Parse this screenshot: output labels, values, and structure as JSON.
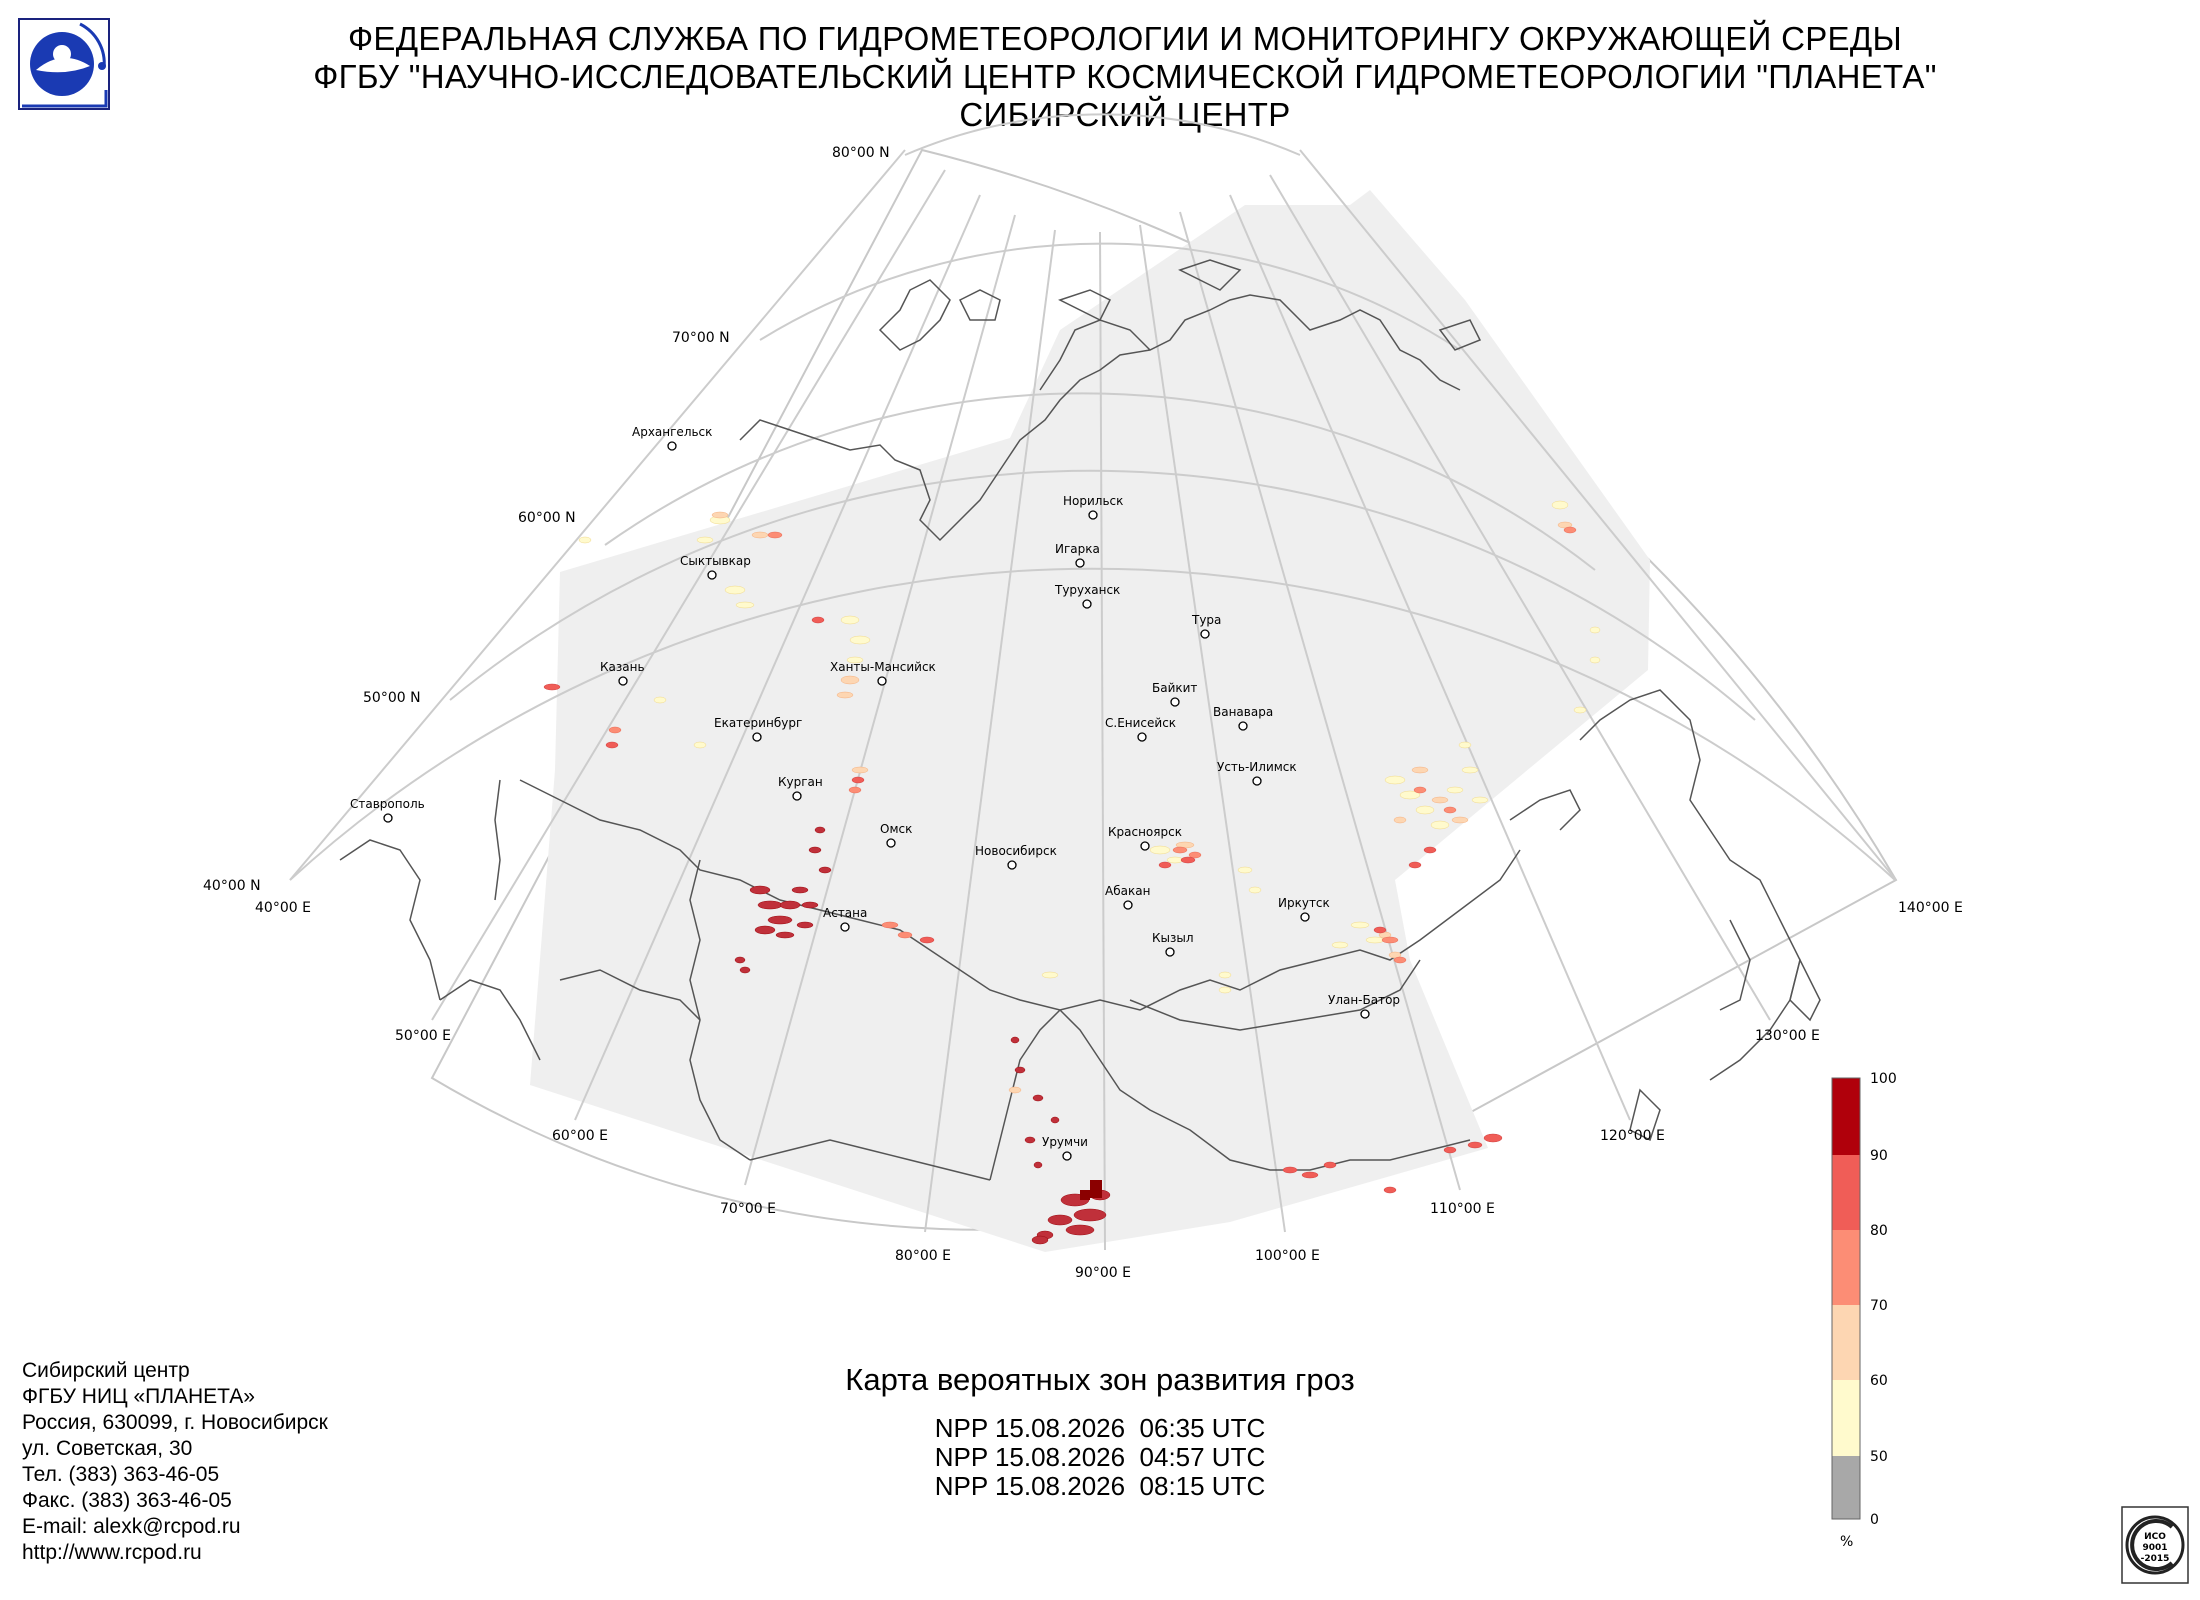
{
  "header": {
    "line1": "ФЕДЕРАЛЬНАЯ СЛУЖБА ПО ГИДРОМЕТЕОРОЛОГИИ И МОНИТОРИНГУ ОКРУЖАЮЩЕЙ СРЕДЫ",
    "line2": "ФГБУ \"НАУЧНО-ИССЛЕДОВАТЕЛЬСКИЙ ЦЕНТР КОСМИЧЕСКОЙ ГИДРОМЕТЕОРОЛОГИИ \"ПЛАНЕТА\"",
    "line3": "СИБИРСКИЙ ЦЕНТР"
  },
  "map": {
    "latitude_labels": [
      "80°00 N",
      "70°00 N",
      "60°00 N",
      "50°00 N",
      "40°00 N"
    ],
    "longitude_labels": [
      "40°00 E",
      "50°00 E",
      "60°00 E",
      "70°00 E",
      "80°00 E",
      "90°00 E",
      "100°00 E",
      "110°00 E",
      "120°00 E",
      "130°00 E",
      "140°00 E"
    ],
    "cities": [
      {
        "name": "Архангельск"
      },
      {
        "name": "Сыктывкар"
      },
      {
        "name": "Казань"
      },
      {
        "name": "Екатеринбург"
      },
      {
        "name": "Ханты-Мансийск"
      },
      {
        "name": "Ставрополь"
      },
      {
        "name": "Курган"
      },
      {
        "name": "Омск"
      },
      {
        "name": "Астана"
      },
      {
        "name": "Новосибирск"
      },
      {
        "name": "Норильск"
      },
      {
        "name": "Игарка"
      },
      {
        "name": "Туруханск"
      },
      {
        "name": "Тура"
      },
      {
        "name": "Байкит"
      },
      {
        "name": "Ванавара"
      },
      {
        "name": "С.Енисейск"
      },
      {
        "name": "Усть-Илимск"
      },
      {
        "name": "Красноярск"
      },
      {
        "name": "Абакан"
      },
      {
        "name": "Кызыл"
      },
      {
        "name": "Иркутск"
      },
      {
        "name": "Улан-Батор"
      },
      {
        "name": "Урумчи"
      }
    ]
  },
  "legend": {
    "unit": "%",
    "ticks": [
      "0",
      "50",
      "60",
      "70",
      "80",
      "90",
      "100"
    ],
    "colors": [
      "#a8a8a8",
      "#fffacd",
      "#fdd6b2",
      "#fc8d75",
      "#f05d57",
      "#b0000b"
    ]
  },
  "address": {
    "lines": [
      "Сибирский центр",
      "ФГБУ НИЦ «ПЛАНЕТА»",
      "Россия, 630099, г. Новосибирск",
      "ул. Советская, 30",
      "Тел. (383) 363-46-05",
      "Факс. (383) 363-46-05",
      "E-mail: alexk@rcpod.ru",
      "http://www.rcpod.ru"
    ]
  },
  "map_title": "Карта вероятных зон развития гроз",
  "passes": [
    "NPP 15.08.2026  06:35 UTC",
    "NPP 15.08.2026  04:57 UTC",
    "NPP 15.08.2026  08:15 UTC"
  ],
  "iso_badge": {
    "line1": "ИСО",
    "line2": "9001",
    "line3": "-2015"
  }
}
